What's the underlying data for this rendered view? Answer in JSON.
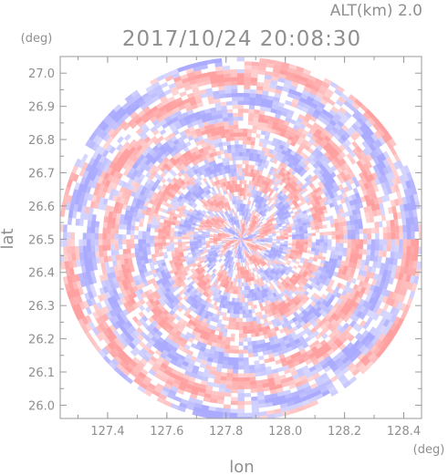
{
  "chart_data": {
    "type": "heatmap",
    "title": "2017/10/24 20:08:30",
    "subtitle": "ALT(km) 2.0",
    "xlabel": "lon",
    "ylabel": "lat",
    "x_unit": "(deg)",
    "y_unit": "(deg)",
    "xlim": [
      127.24,
      128.46
    ],
    "ylim": [
      25.96,
      27.05
    ],
    "x_ticks": [
      "127.4",
      "127.6",
      "127.8",
      "128.0",
      "128.2",
      "128.4"
    ],
    "y_ticks": [
      "26.0",
      "26.1",
      "26.2",
      "26.3",
      "26.4",
      "26.5",
      "26.6",
      "26.7",
      "26.8",
      "26.9",
      "27.0"
    ],
    "radar_center": {
      "lon": 127.85,
      "lat": 26.5
    },
    "radar_range_deg_lon": 0.615,
    "colors": {
      "positive": "#f5a3a3",
      "negative": "#a8a8f0",
      "neutral": "#ffffff",
      "axis": "#9a9a9a"
    }
  }
}
